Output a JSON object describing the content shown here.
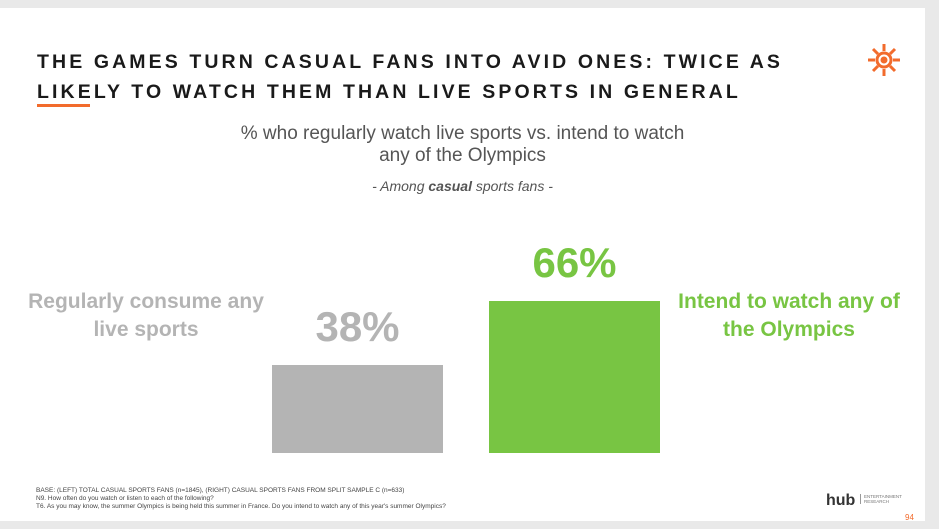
{
  "chart_data": {
    "type": "bar",
    "title": [
      "THE GAMES TURN CASUAL FANS INTO AVID ONES: TWICE AS",
      "LIKELY TO WATCH THEM THAN LIVE SPORTS IN GENERAL"
    ],
    "subtitle": [
      "% who regularly watch live sports vs. intend to watch",
      "any of the Olympics"
    ],
    "note": [
      "- Among ",
      "casual",
      " sports fans -"
    ],
    "categories": [
      "Regularly consume any live sports",
      "Intend to watch any of the Olympics"
    ],
    "values": [
      38,
      66
    ],
    "value_labels": [
      "38%",
      "66%"
    ],
    "colors": [
      "#b4b4b4",
      "#78c543"
    ],
    "footnotes": [
      "BASE: (LEFT) TOTAL CASUAL SPORTS FANS (n=1845), (RIGHT) CASUAL SPORTS FANS FROM SPLIT SAMPLE C (n=633)",
      "N9. How often do you watch or listen to each of the following?",
      "T6. As you may know, the summer Olympics is being held this summer in France. Do you intend to watch any of this year's summer Olympics?"
    ],
    "logo": [
      "hub",
      "ENTERTAINMENT",
      "RESEARCH"
    ],
    "page_number": "94"
  }
}
